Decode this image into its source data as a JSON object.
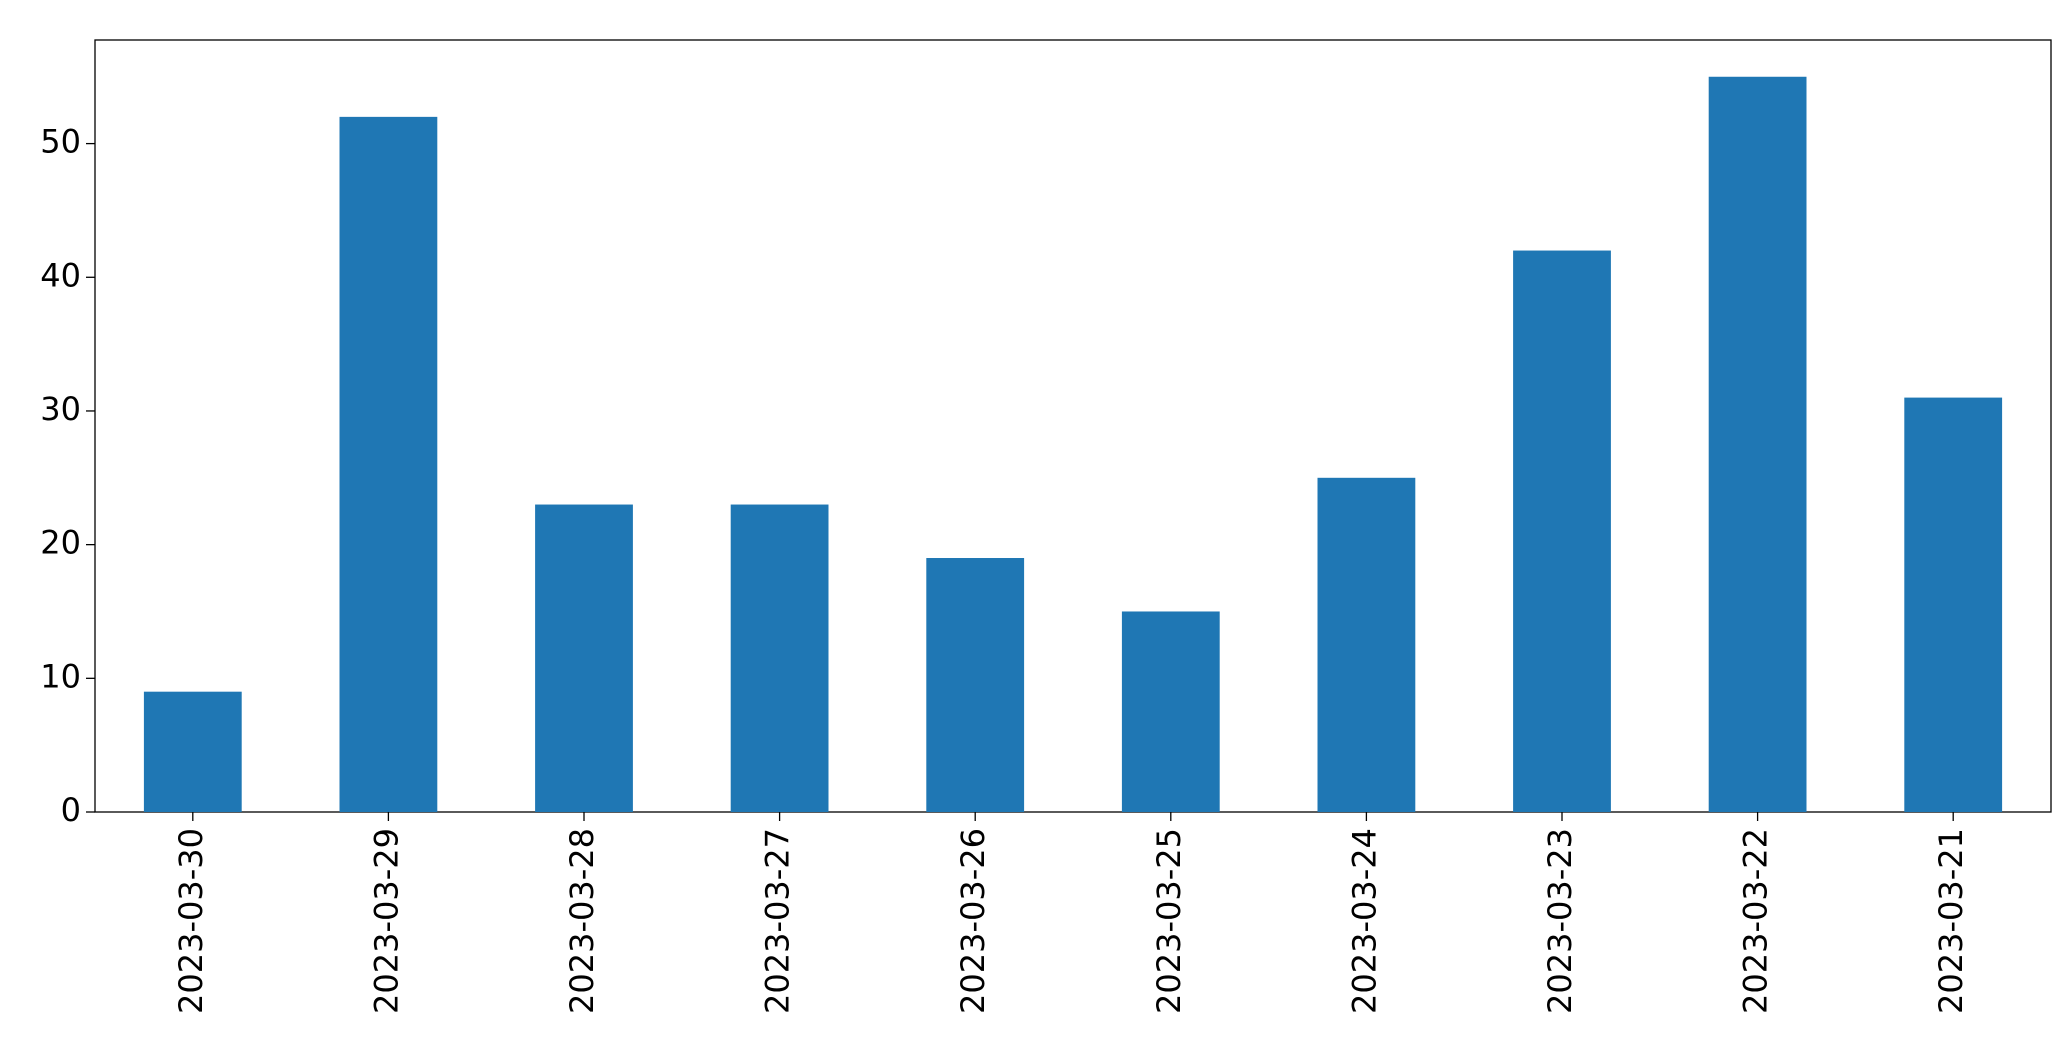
{
  "chart_data": {
    "type": "bar",
    "categories": [
      "2023-03-30",
      "2023-03-29",
      "2023-03-28",
      "2023-03-27",
      "2023-03-26",
      "2023-03-25",
      "2023-03-24",
      "2023-03-23",
      "2023-03-22",
      "2023-03-21"
    ],
    "values": [
      9,
      52,
      23,
      23,
      19,
      15,
      25,
      42,
      55,
      31
    ],
    "color": "#1f77b4",
    "ylim": [
      0,
      57.75
    ],
    "yticks": [
      0,
      10,
      20,
      30,
      40,
      50
    ],
    "grid": false
  }
}
